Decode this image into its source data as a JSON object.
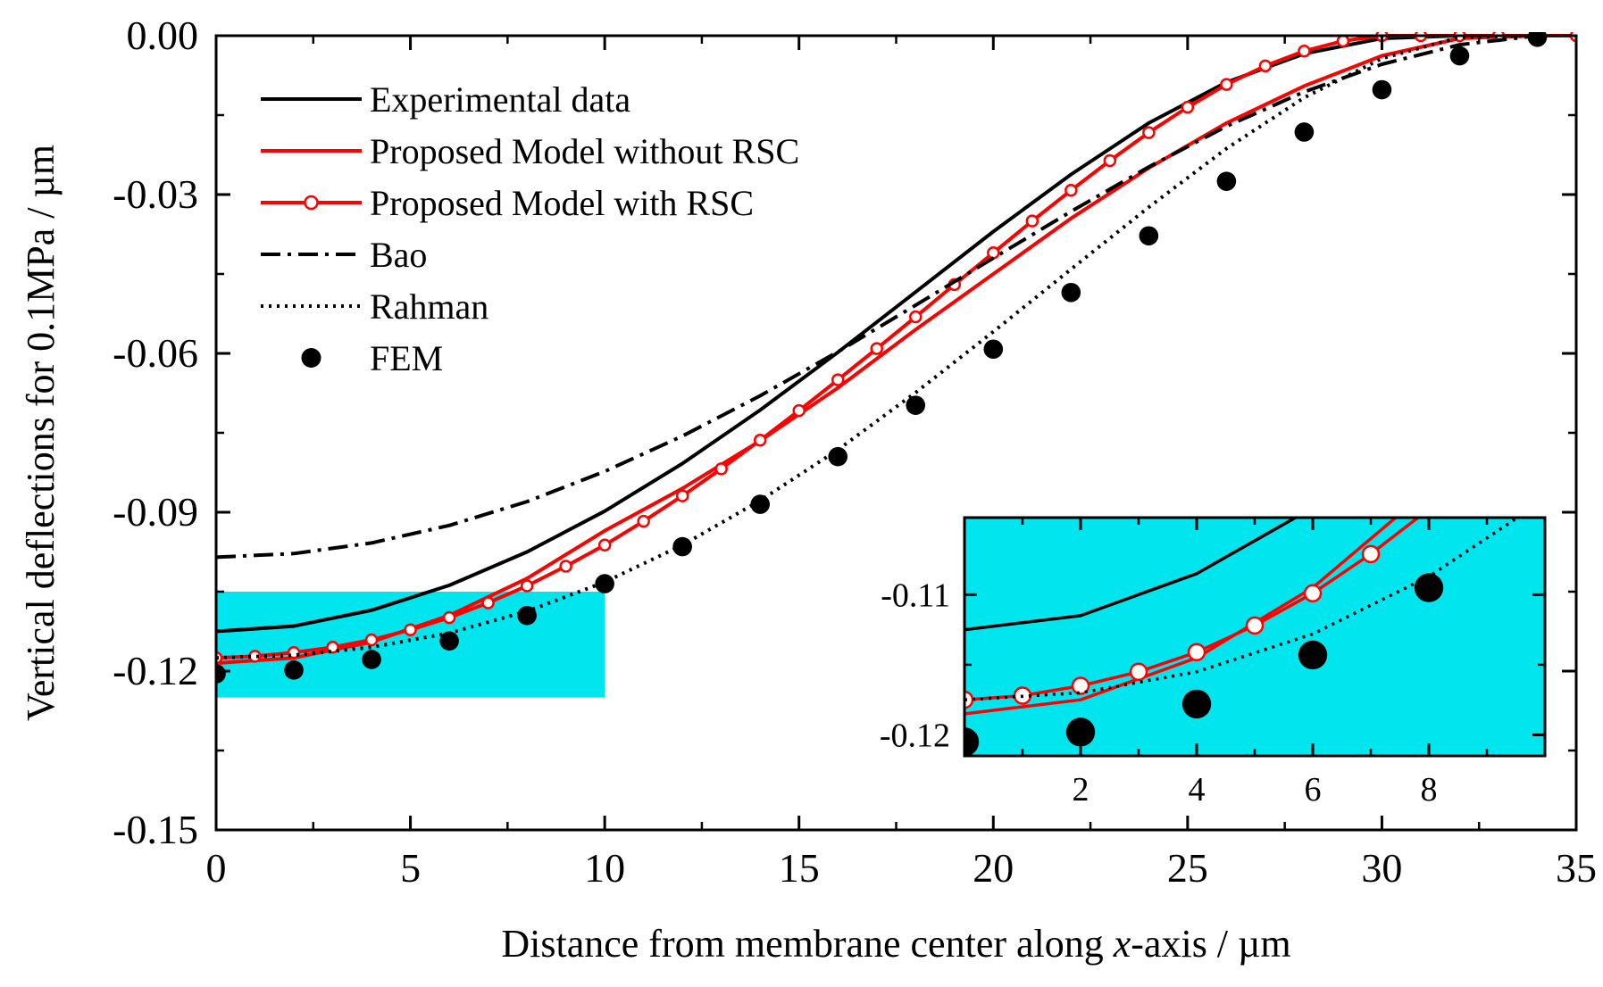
{
  "chart_data": {
    "type": "line",
    "title": "",
    "xlabel_prefix": "Distance from membrane center along ",
    "xlabel_italic": "x",
    "xlabel_suffix": "-axis / µm",
    "ylabel": "Vertical deflections for 0.1MPa / µm",
    "xlim": [
      0,
      35
    ],
    "ylim": [
      -0.15,
      0.0
    ],
    "x_ticks": [
      0,
      5,
      10,
      15,
      20,
      25,
      30,
      35
    ],
    "y_ticks": [
      0.0,
      -0.03,
      -0.06,
      -0.09,
      -0.12,
      -0.15
    ],
    "x_tick_labels": [
      "0",
      "5",
      "10",
      "15",
      "20",
      "25",
      "30",
      "35"
    ],
    "y_tick_labels": [
      "0.00",
      "-0.03",
      "-0.06",
      "-0.09",
      "-0.12",
      "-0.15"
    ],
    "legend_position": "top-left",
    "series": [
      {
        "name": "Experimental data",
        "style": "solid",
        "color": "#000000",
        "x": [
          0,
          2,
          4,
          6,
          8,
          10,
          12,
          14,
          16,
          18,
          20,
          22,
          24,
          26,
          28,
          30,
          32,
          34
        ],
        "y": [
          -0.1125,
          -0.1115,
          -0.1085,
          -0.1038,
          -0.0975,
          -0.0898,
          -0.0808,
          -0.0707,
          -0.0598,
          -0.0484,
          -0.037,
          -0.0262,
          -0.0165,
          -0.0088,
          -0.0034,
          -0.0005,
          0.0,
          0.0
        ]
      },
      {
        "name": "Proposed Model without RSC",
        "style": "solid",
        "color": "#ff0000",
        "x": [
          0,
          2,
          4,
          6,
          8,
          10,
          12,
          14,
          16,
          18,
          20,
          22,
          24,
          26,
          28,
          30,
          32,
          34
        ],
        "y": [
          -0.1185,
          -0.1175,
          -0.1145,
          -0.1095,
          -0.1025,
          -0.0935,
          -0.0855,
          -0.0765,
          -0.0665,
          -0.0555,
          -0.045,
          -0.0345,
          -0.025,
          -0.0165,
          -0.0095,
          -0.0038,
          -0.0005,
          0.0
        ]
      },
      {
        "name": "Proposed Model with RSC",
        "style": "solid-open-circle",
        "color": "#ff0000",
        "x": [
          0,
          1,
          2,
          3,
          4,
          5,
          6,
          7,
          8,
          9,
          10,
          11,
          12,
          13,
          14,
          15,
          16,
          17,
          18,
          19,
          20,
          21,
          22,
          23,
          24,
          25,
          26,
          27,
          28,
          29,
          30,
          31,
          32,
          33,
          34,
          35
        ],
        "y": [
          -0.1175,
          -0.1172,
          -0.1165,
          -0.1155,
          -0.1141,
          -0.1122,
          -0.1099,
          -0.1071,
          -0.1039,
          -0.1002,
          -0.0962,
          -0.0917,
          -0.0869,
          -0.0818,
          -0.0764,
          -0.0708,
          -0.065,
          -0.0591,
          -0.0531,
          -0.047,
          -0.041,
          -0.035,
          -0.0292,
          -0.0236,
          -0.0183,
          -0.0135,
          -0.0092,
          -0.0057,
          -0.0029,
          -0.001,
          0.0,
          0.0,
          0.0,
          0.0,
          0.0,
          0.0
        ]
      },
      {
        "name": "Bao",
        "style": "dashdot",
        "color": "#000000",
        "x": [
          0,
          2,
          4,
          6,
          8,
          10,
          12,
          14,
          16,
          18,
          20,
          22,
          24,
          26,
          28,
          30,
          32,
          34
        ],
        "y": [
          -0.0985,
          -0.0978,
          -0.0958,
          -0.0925,
          -0.088,
          -0.0823,
          -0.0756,
          -0.068,
          -0.0597,
          -0.0509,
          -0.042,
          -0.0332,
          -0.0248,
          -0.0171,
          -0.0106,
          -0.0054,
          -0.0017,
          0.0
        ]
      },
      {
        "name": "Rahman",
        "style": "dotted",
        "color": "#000000",
        "x": [
          0,
          2,
          4,
          6,
          8,
          10,
          12,
          14,
          16,
          18,
          20,
          22,
          24,
          26,
          28,
          30,
          32,
          34
        ],
        "y": [
          -0.1175,
          -0.117,
          -0.1155,
          -0.1128,
          -0.1087,
          -0.1032,
          -0.0962,
          -0.0878,
          -0.0782,
          -0.0674,
          -0.0559,
          -0.0441,
          -0.0324,
          -0.0213,
          -0.0117,
          -0.0043,
          -0.0003,
          0.0
        ]
      },
      {
        "name": "FEM",
        "style": "markers-filled-circle",
        "color": "#000000",
        "x": [
          0,
          2,
          4,
          6,
          8,
          10,
          12,
          14,
          16,
          18,
          20,
          22,
          24,
          26,
          28,
          30,
          32,
          34
        ],
        "y": [
          -0.1205,
          -0.1198,
          -0.1178,
          -0.1143,
          -0.1095,
          -0.1035,
          -0.0965,
          -0.0885,
          -0.0795,
          -0.0698,
          -0.0592,
          -0.0485,
          -0.0378,
          -0.0275,
          -0.0182,
          -0.0102,
          -0.0038,
          -0.0003
        ]
      }
    ],
    "highlight_region": {
      "label": "zoom region",
      "color": "#00e5ee",
      "xlim": [
        0,
        10
      ],
      "ylim": [
        -0.125,
        -0.105
      ]
    },
    "inset": {
      "xlim": [
        0,
        10
      ],
      "ylim": [
        -0.1215,
        -0.1045
      ],
      "x_ticks": [
        2,
        4,
        6,
        8
      ],
      "x_tick_labels": [
        "2",
        "4",
        "6",
        "8"
      ],
      "y_ticks": [
        -0.11,
        -0.12
      ],
      "y_tick_labels": [
        "-0.11",
        "-0.12"
      ],
      "background": "#00e5ee"
    }
  }
}
